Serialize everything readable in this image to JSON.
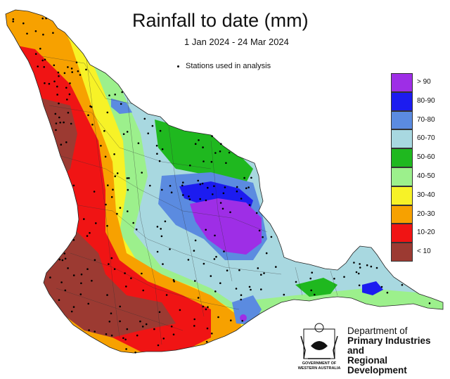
{
  "title": "Rainfall to date (mm)",
  "subtitle": "1 Jan 2024 - 24 Mar 2024",
  "stations_note": "Stations used in analysis",
  "legend": [
    {
      "label": "> 90",
      "color": "#9e2ee6"
    },
    {
      "label": "80-90",
      "color": "#1c1cf0"
    },
    {
      "label": "70-80",
      "color": "#5b8be0"
    },
    {
      "label": "60-70",
      "color": "#a8d8e0"
    },
    {
      "label": "50-60",
      "color": "#1fb81f"
    },
    {
      "label": "40-50",
      "color": "#9cf08c"
    },
    {
      "label": "30-40",
      "color": "#f7f227"
    },
    {
      "label": "20-30",
      "color": "#f7a100"
    },
    {
      "label": "10-20",
      "color": "#f01414"
    },
    {
      "label": "< 10",
      "color": "#9c3a32"
    }
  ],
  "logo": {
    "agency_line1": "Department of",
    "agency_line2": "Primary Industries and",
    "agency_line3": "Regional Development",
    "govt_line1": "GOVERNMENT OF",
    "govt_line2": "WESTERN AUSTRALIA"
  }
}
